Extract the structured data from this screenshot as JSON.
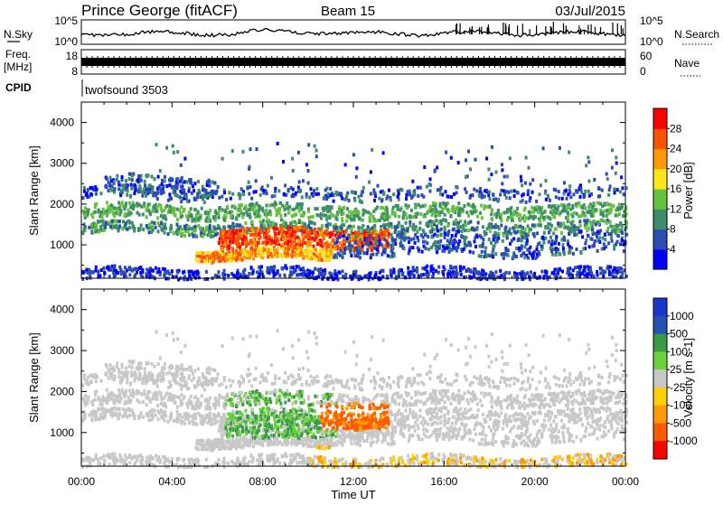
{
  "header": {
    "station": "Prince George (fitACF)",
    "beam": "Beam 15",
    "date": "03/Jul/2015"
  },
  "noise_panel": {
    "left_label": "N.Sky",
    "left_ticks": [
      "10^5",
      "10^0"
    ],
    "right_ticks": [
      "10^5",
      "10^0"
    ],
    "right_label": "N.Search"
  },
  "freq_panel": {
    "left_label_line1": "Freq.",
    "left_label_line2": "[MHz]",
    "left_ticks": [
      "18",
      "8"
    ],
    "right_ticks": [
      "60",
      "0"
    ],
    "right_label": "Nave"
  },
  "cpid": {
    "label": "CPID",
    "program": "twofsound 3503"
  },
  "colors": {
    "power": [
      "#0000ff",
      "#2b4cb0",
      "#3d8d6a",
      "#66c23e",
      "#ffe619",
      "#ff9900",
      "#ff5200",
      "#ff0000"
    ],
    "velocity": [
      "#ff0000",
      "#ff5a00",
      "#ff9a00",
      "#ffd000",
      "#c8c8c8",
      "#6ad23c",
      "#3a9a48",
      "#2850b0",
      "#1a38c8"
    ]
  },
  "chart_data": [
    {
      "type": "heatmap",
      "title": "Power",
      "xlabel": "",
      "ylabel": "Slant Range [km]",
      "xlim": [
        "00:00",
        "24:00"
      ],
      "ylim": [
        180,
        4500
      ],
      "y_ticks": [
        "1000",
        "2000",
        "3000",
        "4000"
      ],
      "colorbar": {
        "label": "Power [dB]",
        "ticks": [
          "4",
          "8",
          "12",
          "16",
          "20",
          "24",
          "28"
        ],
        "range": [
          0,
          32
        ]
      }
    },
    {
      "type": "heatmap",
      "title": "Velocity",
      "xlabel": "Time UT",
      "ylabel": "Slant Range [km]",
      "xlim": [
        "00:00",
        "24:00"
      ],
      "ylim": [
        180,
        4500
      ],
      "x_ticks": [
        "00:00",
        "04:00",
        "08:00",
        "12:00",
        "16:00",
        "20:00",
        "00:00"
      ],
      "y_ticks": [
        "1000",
        "2000",
        "3000",
        "4000"
      ],
      "colorbar": {
        "label": "Velocity [m s-1]",
        "ticks": [
          "1000",
          "500",
          "100",
          "25",
          "-25",
          "-100",
          "-500",
          "-1000"
        ]
      }
    }
  ]
}
